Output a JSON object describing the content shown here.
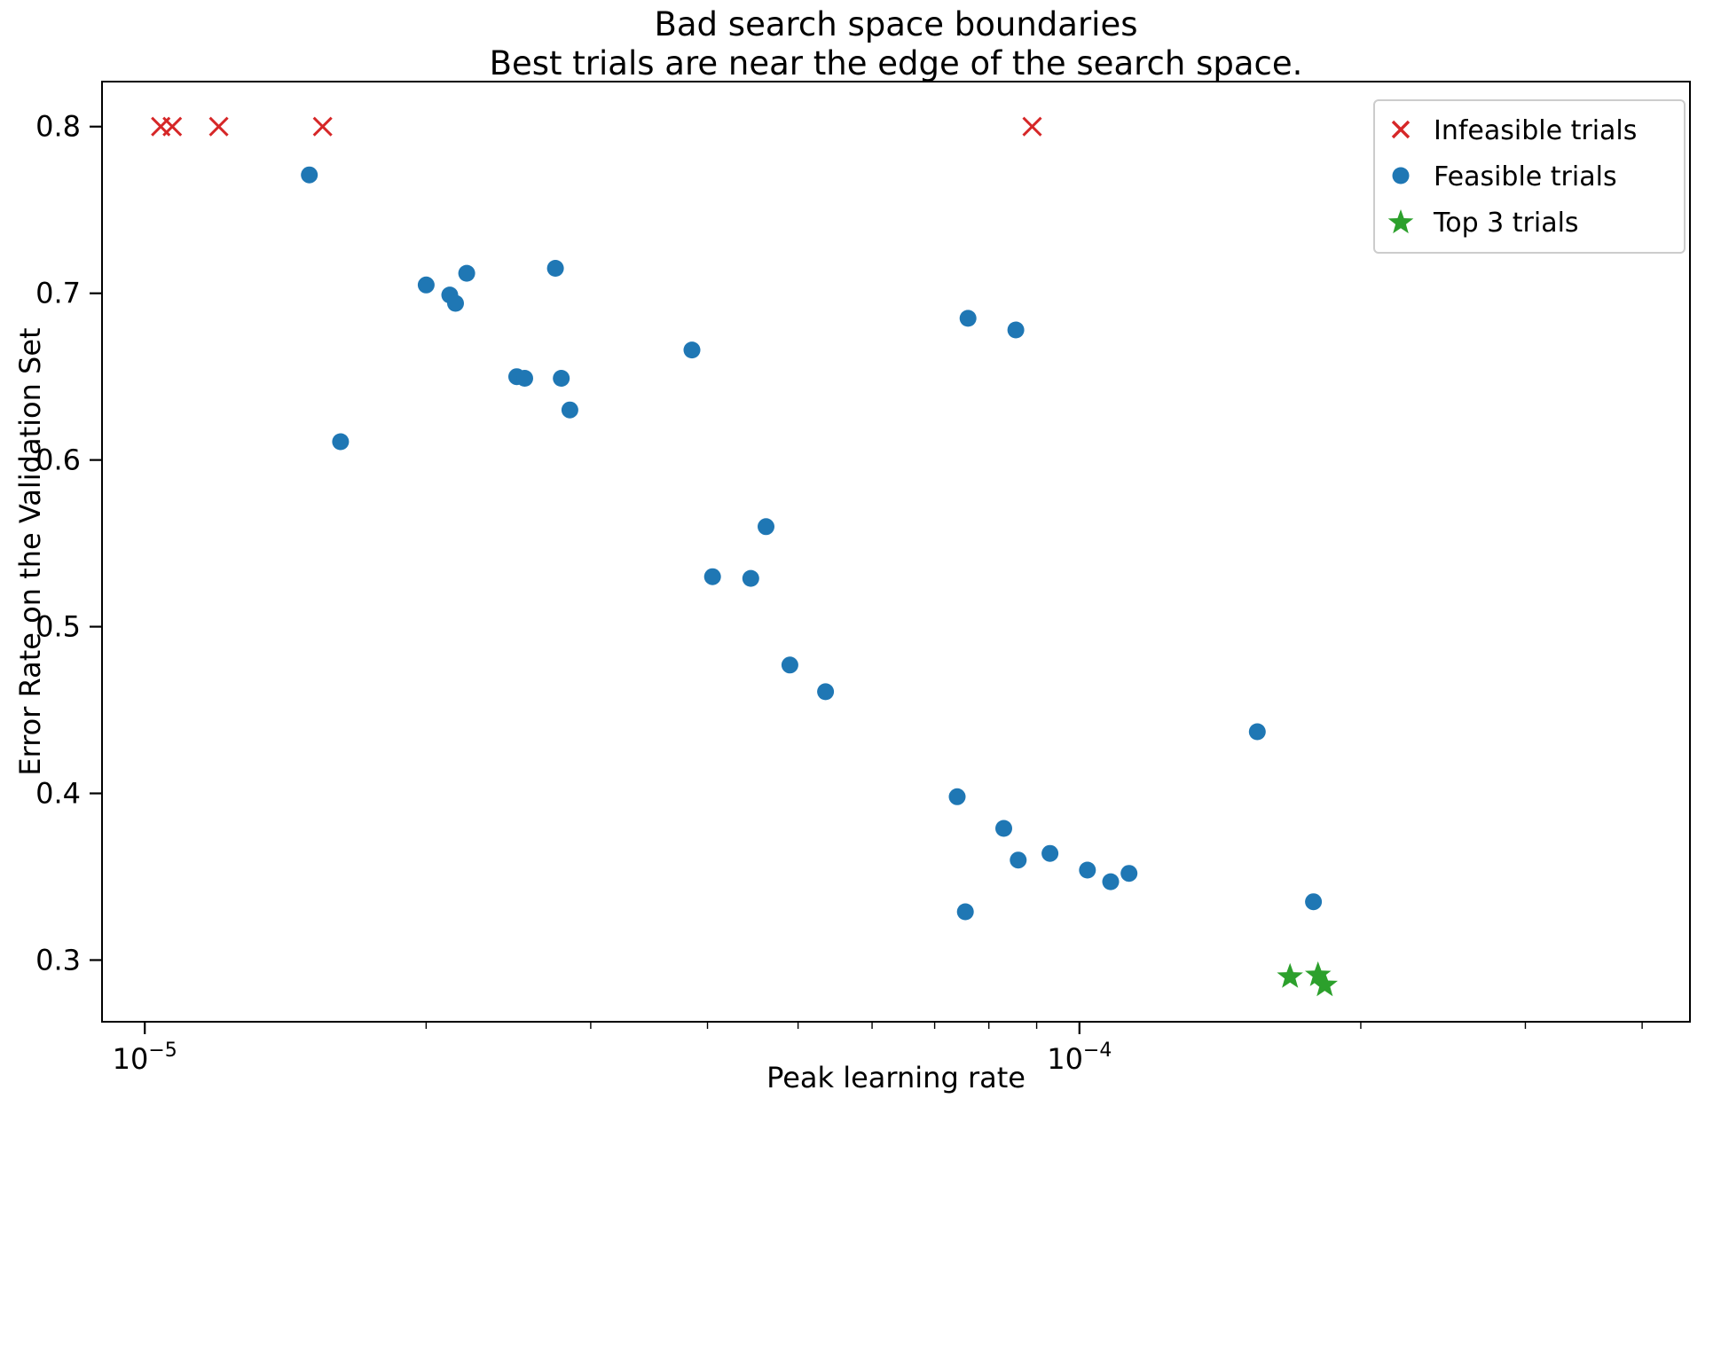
{
  "figure": {
    "background": "#ffffff",
    "text_color": "#000000",
    "frame_color": "#000000"
  },
  "chart_data": {
    "type": "scatter",
    "title_line1": "Bad search space boundaries",
    "title_line2": "Best trials are near the edge of the search space.",
    "xlabel": "Peak learning rate",
    "ylabel": "Error Rate on the Validation Set",
    "x_scale": "log",
    "y_scale": "linear",
    "grid": false,
    "xlim": [
      9e-06,
      0.00045
    ],
    "ylim": [
      0.263,
      0.827
    ],
    "y_ticks": [
      0.3,
      0.4,
      0.5,
      0.6,
      0.7,
      0.8
    ],
    "x_major_ticks": [
      {
        "value": 1e-05,
        "base": "10",
        "exp": "−5"
      },
      {
        "value": 0.0001,
        "base": "10",
        "exp": "−4"
      }
    ],
    "legend_position": "upper right",
    "legend": [
      {
        "label": "Infeasible trials",
        "marker": "x",
        "color": "#d62728"
      },
      {
        "label": "Feasible trials",
        "marker": "circle",
        "color": "#1f77b4"
      },
      {
        "label": "Top 3 trials",
        "marker": "star",
        "color": "#2ca02c"
      }
    ],
    "series": [
      {
        "name": "Infeasible trials",
        "marker": "x",
        "color": "#d62728",
        "points": [
          [
            1.04e-05,
            0.8
          ],
          [
            1.07e-05,
            0.8
          ],
          [
            1.2e-05,
            0.8
          ],
          [
            1.55e-05,
            0.8
          ],
          [
            8.9e-05,
            0.8
          ]
        ]
      },
      {
        "name": "Feasible trials",
        "marker": "circle",
        "color": "#1f77b4",
        "points": [
          [
            1.5e-05,
            0.771
          ],
          [
            1.62e-05,
            0.611
          ],
          [
            2e-05,
            0.705
          ],
          [
            2.12e-05,
            0.699
          ],
          [
            2.15e-05,
            0.694
          ],
          [
            2.21e-05,
            0.712
          ],
          [
            2.5e-05,
            0.65
          ],
          [
            2.55e-05,
            0.649
          ],
          [
            2.75e-05,
            0.715
          ],
          [
            2.79e-05,
            0.649
          ],
          [
            2.85e-05,
            0.63
          ],
          [
            3.85e-05,
            0.666
          ],
          [
            4.05e-05,
            0.53
          ],
          [
            4.45e-05,
            0.529
          ],
          [
            4.62e-05,
            0.56
          ],
          [
            4.9e-05,
            0.477
          ],
          [
            5.35e-05,
            0.461
          ],
          [
            7.4e-05,
            0.398
          ],
          [
            7.55e-05,
            0.329
          ],
          [
            7.6e-05,
            0.685
          ],
          [
            8.3e-05,
            0.379
          ],
          [
            8.55e-05,
            0.678
          ],
          [
            8.6e-05,
            0.36
          ],
          [
            9.3e-05,
            0.364
          ],
          [
            0.000102,
            0.354
          ],
          [
            0.000108,
            0.347
          ],
          [
            0.000113,
            0.352
          ],
          [
            0.000155,
            0.437
          ],
          [
            0.000178,
            0.335
          ]
        ]
      },
      {
        "name": "Top 3 trials",
        "marker": "star",
        "color": "#2ca02c",
        "points": [
          [
            0.000168,
            0.29
          ],
          [
            0.00018,
            0.291
          ],
          [
            0.000183,
            0.285
          ]
        ]
      }
    ]
  }
}
